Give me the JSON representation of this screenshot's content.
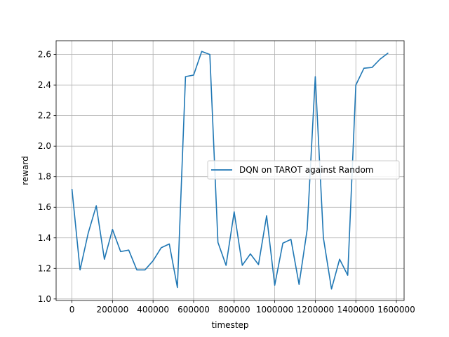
{
  "chart_data": {
    "type": "line",
    "title": "",
    "xlabel": "timestep",
    "ylabel": "reward",
    "xlim": [
      -78000,
      1638000
    ],
    "ylim": [
      0.99,
      2.69
    ],
    "grid": true,
    "legend_position": "center-right",
    "x_ticks": [
      0,
      200000,
      400000,
      600000,
      800000,
      1000000,
      1200000,
      1400000,
      1600000
    ],
    "x_tick_labels": [
      "0",
      "200000",
      "400000",
      "600000",
      "800000",
      "1000000",
      "1200000",
      "1400000",
      "1600000"
    ],
    "y_ticks": [
      1.0,
      1.2,
      1.4,
      1.6,
      1.8,
      2.0,
      2.2,
      2.4,
      2.6
    ],
    "y_tick_labels": [
      "1.0",
      "1.2",
      "1.4",
      "1.6",
      "1.8",
      "2.0",
      "2.2",
      "2.4",
      "2.6"
    ],
    "series": [
      {
        "name": "DQN on TAROT against Random",
        "color": "#1f77b4",
        "x": [
          0,
          40000,
          80000,
          120000,
          160000,
          200000,
          240000,
          280000,
          320000,
          360000,
          400000,
          440000,
          480000,
          520000,
          560000,
          600000,
          640000,
          680000,
          720000,
          760000,
          800000,
          840000,
          880000,
          920000,
          960000,
          1000000,
          1040000,
          1080000,
          1120000,
          1160000,
          1200000,
          1240000,
          1280000,
          1320000,
          1360000,
          1400000,
          1440000,
          1480000,
          1520000,
          1560000
        ],
        "y": [
          1.72,
          1.19,
          1.43,
          1.61,
          1.26,
          1.455,
          1.31,
          1.32,
          1.19,
          1.19,
          1.25,
          1.335,
          1.36,
          1.075,
          2.455,
          2.465,
          2.62,
          2.6,
          1.37,
          1.22,
          1.57,
          1.22,
          1.295,
          1.225,
          1.545,
          1.09,
          1.365,
          1.39,
          1.095,
          1.455,
          2.455,
          1.4,
          1.065,
          1.26,
          1.155,
          2.4,
          2.51,
          2.515,
          2.57,
          2.61
        ]
      }
    ]
  }
}
